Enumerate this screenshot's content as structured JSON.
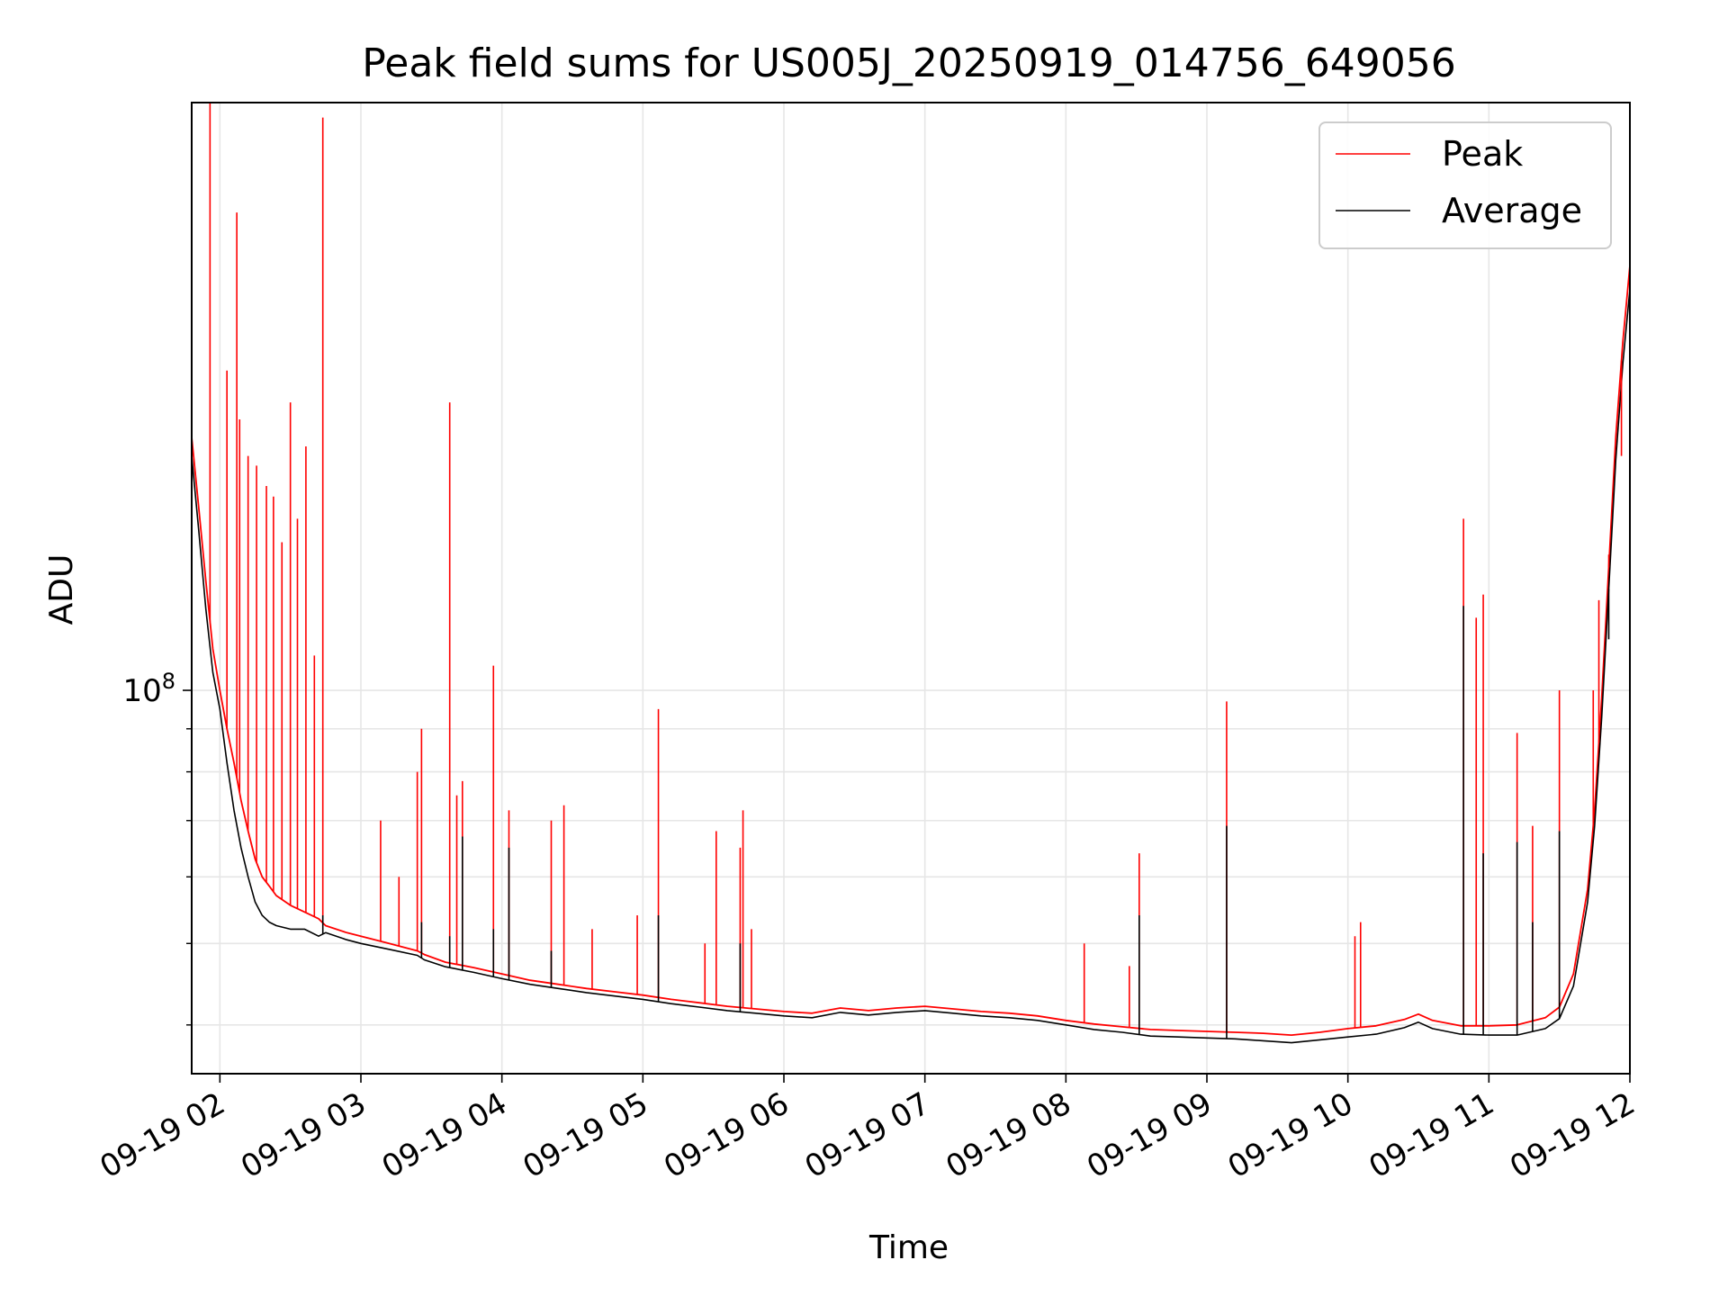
{
  "chart_data": {
    "type": "line",
    "title": "Peak field sums for US005J_20250919_014756_649056",
    "xlabel": "Time",
    "ylabel": "ADU",
    "yscale": "log",
    "ylim": [
      35000000,
      500000000
    ],
    "xlim": [
      1.8,
      12.0
    ],
    "grid": true,
    "legend_position": "top-right",
    "x_ticks": [
      {
        "value": 2,
        "label": "09-19 02"
      },
      {
        "value": 3,
        "label": "09-19 03"
      },
      {
        "value": 4,
        "label": "09-19 04"
      },
      {
        "value": 5,
        "label": "09-19 05"
      },
      {
        "value": 6,
        "label": "09-19 06"
      },
      {
        "value": 7,
        "label": "09-19 07"
      },
      {
        "value": 8,
        "label": "09-19 08"
      },
      {
        "value": 9,
        "label": "09-19 09"
      },
      {
        "value": 10,
        "label": "09-19 10"
      },
      {
        "value": 11,
        "label": "09-19 11"
      },
      {
        "value": 12,
        "label": "09-19 12"
      }
    ],
    "y_major_tick": {
      "value": 100000000,
      "base": "10",
      "exp": "8"
    },
    "y_minor_ticks": [
      40000000,
      50000000,
      60000000,
      70000000,
      80000000,
      90000000
    ],
    "series": [
      {
        "name": "Peak",
        "color": "#ff0000",
        "x": [
          1.8,
          1.85,
          1.9,
          1.95,
          2.0,
          2.05,
          2.1,
          2.15,
          2.2,
          2.25,
          2.3,
          2.35,
          2.4,
          2.5,
          2.6,
          2.7,
          2.75,
          2.9,
          3.0,
          3.2,
          3.4,
          3.45,
          3.6,
          3.8,
          4.0,
          4.2,
          4.4,
          4.6,
          4.8,
          5.0,
          5.2,
          5.4,
          5.6,
          5.8,
          6.0,
          6.2,
          6.4,
          6.6,
          6.8,
          7.0,
          7.2,
          7.4,
          7.6,
          7.8,
          8.0,
          8.2,
          8.4,
          8.6,
          8.8,
          9.0,
          9.2,
          9.4,
          9.6,
          9.8,
          10.0,
          10.2,
          10.4,
          10.5,
          10.6,
          10.8,
          11.0,
          11.2,
          11.4,
          11.5,
          11.6,
          11.7,
          11.75,
          11.8,
          11.85,
          11.9,
          11.95,
          12.0
        ],
        "y": [
          200000000,
          165000000,
          135000000,
          112000000,
          100000000,
          90000000,
          82000000,
          74000000,
          68000000,
          63000000,
          60000000,
          58500000,
          57000000,
          55500000,
          54500000,
          53500000,
          52500000,
          51500000,
          51000000,
          50000000,
          49000000,
          48500000,
          47500000,
          46800000,
          46000000,
          45200000,
          44700000,
          44200000,
          43800000,
          43400000,
          42900000,
          42500000,
          42100000,
          41800000,
          41500000,
          41300000,
          41900000,
          41600000,
          41900000,
          42100000,
          41800000,
          41500000,
          41300000,
          41000000,
          40500000,
          40100000,
          39800000,
          39500000,
          39400000,
          39300000,
          39200000,
          39100000,
          38900000,
          39200000,
          39600000,
          39900000,
          40600000,
          41200000,
          40500000,
          39900000,
          39900000,
          40000000,
          40800000,
          42000000,
          46000000,
          58000000,
          72000000,
          98000000,
          140000000,
          200000000,
          260000000,
          320000000
        ]
      },
      {
        "name": "Average",
        "color": "#000000",
        "x": [
          1.8,
          1.85,
          1.9,
          1.95,
          2.0,
          2.05,
          2.1,
          2.15,
          2.2,
          2.25,
          2.3,
          2.35,
          2.4,
          2.5,
          2.6,
          2.7,
          2.75,
          2.9,
          3.0,
          3.2,
          3.4,
          3.45,
          3.6,
          3.8,
          4.0,
          4.2,
          4.4,
          4.6,
          4.8,
          5.0,
          5.2,
          5.4,
          5.6,
          5.8,
          6.0,
          6.2,
          6.4,
          6.6,
          6.8,
          7.0,
          7.2,
          7.4,
          7.6,
          7.8,
          8.0,
          8.2,
          8.4,
          8.6,
          8.8,
          9.0,
          9.2,
          9.4,
          9.6,
          9.8,
          10.0,
          10.2,
          10.4,
          10.5,
          10.6,
          10.8,
          11.0,
          11.2,
          11.4,
          11.5,
          11.6,
          11.7,
          11.75,
          11.8,
          11.85,
          11.9,
          11.95,
          12.0
        ],
        "y": [
          190000000,
          155000000,
          125000000,
          105000000,
          95000000,
          82000000,
          72000000,
          65000000,
          60000000,
          56000000,
          54000000,
          53000000,
          52500000,
          52000000,
          52000000,
          51000000,
          51500000,
          50500000,
          50000000,
          49200000,
          48400000,
          47800000,
          46900000,
          46200000,
          45400000,
          44700000,
          44200000,
          43700000,
          43300000,
          42900000,
          42400000,
          42000000,
          41600000,
          41300000,
          41000000,
          40800000,
          41400000,
          41100000,
          41400000,
          41600000,
          41300000,
          41000000,
          40800000,
          40500000,
          40000000,
          39500000,
          39200000,
          38800000,
          38700000,
          38600000,
          38500000,
          38300000,
          38100000,
          38400000,
          38700000,
          39000000,
          39700000,
          40300000,
          39600000,
          39000000,
          38900000,
          38900000,
          39600000,
          40700000,
          44500000,
          56000000,
          69000000,
          93000000,
          132000000,
          188000000,
          245000000,
          300000000
        ]
      }
    ],
    "peak_spikes": [
      {
        "x": 1.93,
        "y": 500000000
      },
      {
        "x": 2.05,
        "y": 240000000
      },
      {
        "x": 2.12,
        "y": 370000000
      },
      {
        "x": 2.14,
        "y": 210000000
      },
      {
        "x": 2.2,
        "y": 190000000
      },
      {
        "x": 2.26,
        "y": 185000000
      },
      {
        "x": 2.33,
        "y": 175000000
      },
      {
        "x": 2.38,
        "y": 170000000
      },
      {
        "x": 2.44,
        "y": 150000000
      },
      {
        "x": 2.5,
        "y": 220000000
      },
      {
        "x": 2.55,
        "y": 160000000
      },
      {
        "x": 2.61,
        "y": 195000000
      },
      {
        "x": 2.67,
        "y": 110000000
      },
      {
        "x": 2.73,
        "y": 480000000
      },
      {
        "x": 3.14,
        "y": 70000000
      },
      {
        "x": 3.27,
        "y": 60000000
      },
      {
        "x": 3.4,
        "y": 80000000
      },
      {
        "x": 3.43,
        "y": 90000000
      },
      {
        "x": 3.63,
        "y": 220000000
      },
      {
        "x": 3.68,
        "y": 75000000
      },
      {
        "x": 3.72,
        "y": 78000000
      },
      {
        "x": 3.94,
        "y": 107000000
      },
      {
        "x": 4.05,
        "y": 72000000
      },
      {
        "x": 4.35,
        "y": 70000000
      },
      {
        "x": 4.44,
        "y": 73000000
      },
      {
        "x": 4.64,
        "y": 52000000
      },
      {
        "x": 4.96,
        "y": 54000000
      },
      {
        "x": 5.11,
        "y": 95000000
      },
      {
        "x": 5.44,
        "y": 50000000
      },
      {
        "x": 5.52,
        "y": 68000000
      },
      {
        "x": 5.69,
        "y": 65000000
      },
      {
        "x": 5.71,
        "y": 72000000
      },
      {
        "x": 5.77,
        "y": 52000000
      },
      {
        "x": 8.13,
        "y": 50000000
      },
      {
        "x": 8.45,
        "y": 47000000
      },
      {
        "x": 8.52,
        "y": 64000000
      },
      {
        "x": 9.14,
        "y": 97000000
      },
      {
        "x": 10.05,
        "y": 51000000
      },
      {
        "x": 10.09,
        "y": 53000000
      },
      {
        "x": 10.82,
        "y": 160000000
      },
      {
        "x": 10.91,
        "y": 122000000
      },
      {
        "x": 10.96,
        "y": 130000000
      },
      {
        "x": 11.2,
        "y": 89000000
      },
      {
        "x": 11.31,
        "y": 69000000
      },
      {
        "x": 11.5,
        "y": 100000000
      },
      {
        "x": 11.74,
        "y": 100000000
      },
      {
        "x": 11.78,
        "y": 128000000
      },
      {
        "x": 11.85,
        "y": 145000000
      },
      {
        "x": 11.94,
        "y": 190000000
      },
      {
        "x": 12.0,
        "y": 270000000
      }
    ],
    "average_spikes": [
      {
        "x": 2.73,
        "y": 54000000
      },
      {
        "x": 3.43,
        "y": 53000000
      },
      {
        "x": 3.63,
        "y": 51000000
      },
      {
        "x": 3.72,
        "y": 67000000
      },
      {
        "x": 3.94,
        "y": 52000000
      },
      {
        "x": 4.05,
        "y": 65000000
      },
      {
        "x": 4.35,
        "y": 49000000
      },
      {
        "x": 5.11,
        "y": 54000000
      },
      {
        "x": 5.69,
        "y": 50000000
      },
      {
        "x": 8.52,
        "y": 54000000
      },
      {
        "x": 9.14,
        "y": 69000000
      },
      {
        "x": 10.82,
        "y": 126000000
      },
      {
        "x": 10.96,
        "y": 64000000
      },
      {
        "x": 11.2,
        "y": 66000000
      },
      {
        "x": 11.31,
        "y": 53000000
      },
      {
        "x": 11.5,
        "y": 68000000
      },
      {
        "x": 11.85,
        "y": 115000000
      }
    ],
    "legend": [
      {
        "label": "Peak",
        "color": "#ff0000"
      },
      {
        "label": "Average",
        "color": "#000000"
      }
    ]
  }
}
